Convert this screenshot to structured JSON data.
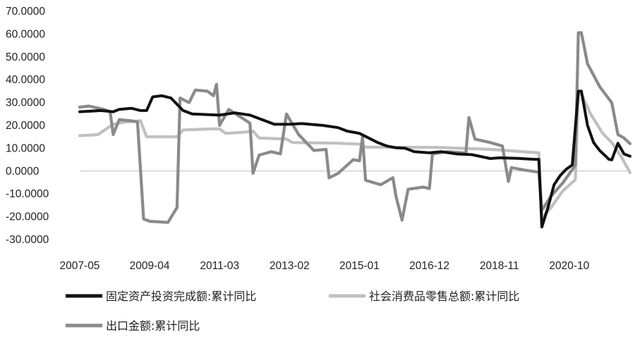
{
  "chart_data": {
    "type": "line",
    "title": "",
    "xlabel": "",
    "ylabel": "",
    "ylim": [
      -30,
      70
    ],
    "y_ticks": [
      "70.0000",
      "60.0000",
      "50.0000",
      "40.0000",
      "30.0000",
      "20.0000",
      "10.0000",
      "0.0000",
      "-10.0000",
      "-20.0000",
      "-30.0000"
    ],
    "x_ticks": [
      "2007-05",
      "2009-04",
      "2011-03",
      "2013-02",
      "2015-01",
      "2016-12",
      "2018-11",
      "2020-10"
    ],
    "x_range": [
      "2007-05",
      "2022-06"
    ],
    "grid": false,
    "legend": "bottom",
    "series": [
      {
        "name": "固定资产投资完成额:累计同比",
        "color": "#111111",
        "points": [
          [
            "2007-05",
            26
          ],
          [
            "2007-12",
            26.5
          ],
          [
            "2008-04",
            26
          ],
          [
            "2008-06",
            27
          ],
          [
            "2008-10",
            27.5
          ],
          [
            "2009-01",
            26.5
          ],
          [
            "2009-03",
            26.5
          ],
          [
            "2009-05",
            32.5
          ],
          [
            "2009-08",
            33
          ],
          [
            "2009-11",
            32
          ],
          [
            "2010-03",
            26.5
          ],
          [
            "2010-06",
            25
          ],
          [
            "2011-03",
            24.5
          ],
          [
            "2011-08",
            25.5
          ],
          [
            "2012-01",
            24.5
          ],
          [
            "2012-06",
            22
          ],
          [
            "2012-09",
            20.5
          ],
          [
            "2013-02",
            20.5
          ],
          [
            "2013-06",
            20.8
          ],
          [
            "2014-01",
            20
          ],
          [
            "2014-06",
            19
          ],
          [
            "2014-09",
            17.5
          ],
          [
            "2015-01",
            16.5
          ],
          [
            "2015-04",
            14.5
          ],
          [
            "2015-07",
            12.5
          ],
          [
            "2015-10",
            11.0
          ],
          [
            "2016-01",
            10.2
          ],
          [
            "2016-04",
            10.0
          ],
          [
            "2016-07",
            8.5
          ],
          [
            "2016-12",
            8.0
          ],
          [
            "2017-04",
            8.5
          ],
          [
            "2017-09",
            7.5
          ],
          [
            "2018-02",
            7.2
          ],
          [
            "2018-08",
            5.5
          ],
          [
            "2018-11",
            5.8
          ],
          [
            "2019-05",
            5.6
          ],
          [
            "2019-10",
            5.2
          ],
          [
            "2019-12",
            5.1
          ],
          [
            "2020-01",
            -24.5
          ],
          [
            "2020-03",
            -16
          ],
          [
            "2020-05",
            -6
          ],
          [
            "2020-07",
            -2
          ],
          [
            "2020-09",
            0.8
          ],
          [
            "2020-11",
            2.7
          ],
          [
            "2021-01",
            35
          ],
          [
            "2021-02",
            35
          ],
          [
            "2021-04",
            20
          ],
          [
            "2021-06",
            12.5
          ],
          [
            "2021-08",
            9
          ],
          [
            "2021-10",
            6.5
          ],
          [
            "2021-11",
            5.2
          ],
          [
            "2021-12",
            4.9
          ],
          [
            "2022-02",
            12.2
          ],
          [
            "2022-04",
            7.5
          ],
          [
            "2022-06",
            6.5
          ]
        ]
      },
      {
        "name": "社会消费品零售总额:累计同比",
        "color": "#c0c0c0",
        "points": [
          [
            "2007-05",
            15.5
          ],
          [
            "2007-11",
            16
          ],
          [
            "2008-04",
            20.5
          ],
          [
            "2008-08",
            21.5
          ],
          [
            "2009-01",
            22
          ],
          [
            "2009-03",
            15
          ],
          [
            "2010-01",
            15.0
          ],
          [
            "2010-03",
            18
          ],
          [
            "2011-01",
            18.5
          ],
          [
            "2011-03",
            18.5
          ],
          [
            "2011-05",
            16.5
          ],
          [
            "2011-11",
            17
          ],
          [
            "2012-02",
            17.5
          ],
          [
            "2012-04",
            14.5
          ],
          [
            "2013-01",
            14.0
          ],
          [
            "2013-03",
            12.5
          ],
          [
            "2014-06",
            12.2
          ],
          [
            "2015-01",
            11.8
          ],
          [
            "2015-03",
            10.5
          ],
          [
            "2016-12",
            10.4
          ],
          [
            "2017-04",
            10.3
          ],
          [
            "2018-08",
            9.5
          ],
          [
            "2019-12",
            8.0
          ],
          [
            "2020-01",
            -20.5
          ],
          [
            "2020-04",
            -16
          ],
          [
            "2020-08",
            -8.5
          ],
          [
            "2020-12",
            -3.8
          ],
          [
            "2021-01",
            33.8
          ],
          [
            "2021-02",
            33.8
          ],
          [
            "2021-05",
            25
          ],
          [
            "2021-09",
            16.5
          ],
          [
            "2021-12",
            12.5
          ],
          [
            "2022-03",
            6.5
          ],
          [
            "2022-06",
            -0.7
          ]
        ]
      },
      {
        "name": "出口金额:累计同比",
        "color": "#8a8a8a",
        "points": [
          [
            "2007-05",
            28
          ],
          [
            "2007-08",
            28.5
          ],
          [
            "2008-01",
            27
          ],
          [
            "2008-03",
            26
          ],
          [
            "2008-04",
            16
          ],
          [
            "2008-06",
            22.5
          ],
          [
            "2008-10",
            22
          ],
          [
            "2008-12",
            21.5
          ],
          [
            "2009-02",
            -21
          ],
          [
            "2009-04",
            -22
          ],
          [
            "2009-10",
            -22.5
          ],
          [
            "2010-01",
            -16
          ],
          [
            "2010-02",
            32
          ],
          [
            "2010-05",
            30
          ],
          [
            "2010-07",
            35.5
          ],
          [
            "2010-11",
            35
          ],
          [
            "2011-01",
            33
          ],
          [
            "2011-02",
            38
          ],
          [
            "2011-03",
            20
          ],
          [
            "2011-06",
            27
          ],
          [
            "2012-01",
            21
          ],
          [
            "2012-02",
            -1
          ],
          [
            "2012-04",
            7
          ],
          [
            "2012-08",
            8.5
          ],
          [
            "2012-11",
            7.5
          ],
          [
            "2013-01",
            25
          ],
          [
            "2013-05",
            16
          ],
          [
            "2013-10",
            9
          ],
          [
            "2014-02",
            9.5
          ],
          [
            "2014-03",
            -3
          ],
          [
            "2014-06",
            -1
          ],
          [
            "2014-11",
            5
          ],
          [
            "2015-01",
            4.5
          ],
          [
            "2015-02",
            15
          ],
          [
            "2015-03",
            -4
          ],
          [
            "2015-08",
            -6
          ],
          [
            "2015-12",
            -2.9
          ],
          [
            "2016-01",
            -11
          ],
          [
            "2016-03",
            -21.5
          ],
          [
            "2016-05",
            -8
          ],
          [
            "2016-10",
            -7
          ],
          [
            "2016-12",
            -7.7
          ],
          [
            "2017-01",
            7.5
          ],
          [
            "2017-06",
            8.5
          ],
          [
            "2017-12",
            7.9
          ],
          [
            "2018-01",
            23.5
          ],
          [
            "2018-03",
            14
          ],
          [
            "2018-08",
            12.5
          ],
          [
            "2018-12",
            11
          ],
          [
            "2019-02",
            -4.6
          ],
          [
            "2019-03",
            1.5
          ],
          [
            "2019-07",
            0.5
          ],
          [
            "2019-12",
            -0.5
          ],
          [
            "2020-01",
            -17.2
          ],
          [
            "2020-04",
            -11
          ],
          [
            "2020-08",
            -5
          ],
          [
            "2020-12",
            2.5
          ],
          [
            "2021-01",
            60.6
          ],
          [
            "2021-02",
            60.6
          ],
          [
            "2021-04",
            47
          ],
          [
            "2021-08",
            37
          ],
          [
            "2021-12",
            29.9
          ],
          [
            "2022-02",
            16
          ],
          [
            "2022-04",
            14.5
          ],
          [
            "2022-06",
            12
          ]
        ]
      }
    ]
  }
}
